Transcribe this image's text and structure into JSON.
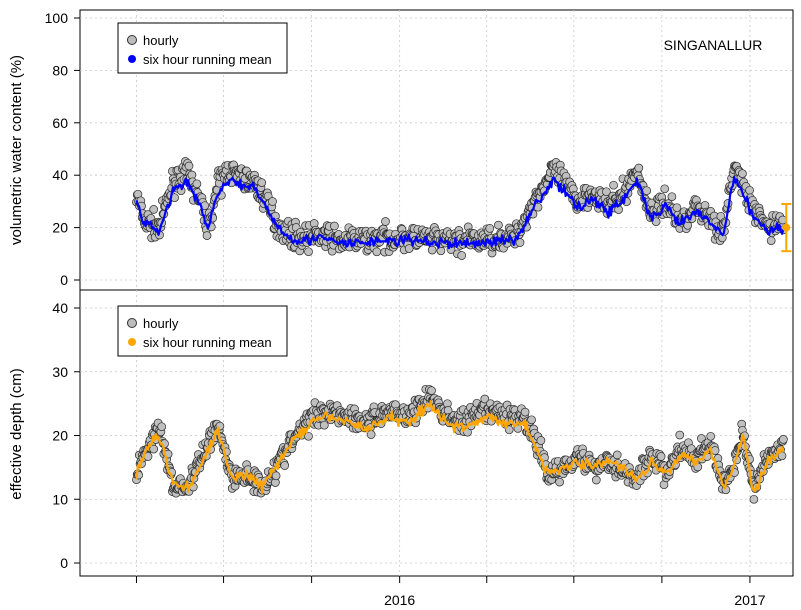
{
  "chart_data": [
    {
      "type": "scatter",
      "title": "",
      "annotation": "SINGANALLUR",
      "xlabel": "",
      "ylabel": "volumetric water content (%)",
      "ylim": [
        0,
        100
      ],
      "yticks": [
        "0",
        "20",
        "40",
        "60",
        "80",
        "100"
      ],
      "xtick_labels": [
        {
          "x": "2016-01-01",
          "label": "2016"
        },
        {
          "x": "2017-01-01",
          "label": "2017"
        }
      ],
      "xlim": [
        "2015-02-01",
        "2017-02-15"
      ],
      "grid": true,
      "legend_position": "top-left",
      "series": [
        {
          "name": "hourly",
          "marker": "grey-circle",
          "x": [
            "2015-04-01",
            "2015-04-10",
            "2015-04-25",
            "2015-05-10",
            "2015-05-25",
            "2015-06-05",
            "2015-06-15",
            "2015-06-25",
            "2015-07-05",
            "2015-07-15",
            "2015-07-25",
            "2015-08-01",
            "2015-08-15",
            "2015-08-25",
            "2015-09-05",
            "2015-09-20",
            "2015-10-10",
            "2015-10-30",
            "2015-11-20",
            "2015-12-10",
            "2016-01-01",
            "2016-01-20",
            "2016-02-10",
            "2016-03-01",
            "2016-03-20",
            "2016-04-10",
            "2016-05-01",
            "2016-05-20",
            "2016-06-10",
            "2016-06-25",
            "2016-07-05",
            "2016-07-20",
            "2016-08-05",
            "2016-08-20",
            "2016-09-05",
            "2016-09-20",
            "2016-10-05",
            "2016-10-20",
            "2016-11-05",
            "2016-11-20",
            "2016-12-05",
            "2016-12-15",
            "2016-12-25",
            "2017-01-05",
            "2017-01-20",
            "2017-02-05"
          ],
          "values": [
            32,
            22,
            20,
            38,
            40,
            32,
            20,
            36,
            42,
            40,
            38,
            38,
            30,
            22,
            18,
            16,
            17,
            15,
            15,
            16,
            16,
            16,
            15,
            15,
            15,
            16,
            16,
            30,
            42,
            35,
            30,
            34,
            28,
            32,
            42,
            25,
            30,
            22,
            28,
            24,
            18,
            44,
            36,
            26,
            20,
            22
          ]
        },
        {
          "name": "six hour running mean",
          "color": "#0000ff",
          "x": [
            "2015-04-01",
            "2015-04-10",
            "2015-04-25",
            "2015-05-10",
            "2015-05-25",
            "2015-06-05",
            "2015-06-15",
            "2015-06-25",
            "2015-07-05",
            "2015-07-15",
            "2015-07-25",
            "2015-08-01",
            "2015-08-15",
            "2015-08-25",
            "2015-09-05",
            "2015-09-20",
            "2015-10-10",
            "2015-10-30",
            "2015-11-20",
            "2015-12-10",
            "2016-01-01",
            "2016-01-20",
            "2016-02-10",
            "2016-03-01",
            "2016-03-20",
            "2016-04-10",
            "2016-05-01",
            "2016-05-20",
            "2016-06-10",
            "2016-06-25",
            "2016-07-05",
            "2016-07-20",
            "2016-08-05",
            "2016-08-20",
            "2016-09-05",
            "2016-09-20",
            "2016-10-05",
            "2016-10-20",
            "2016-11-05",
            "2016-11-20",
            "2016-12-05",
            "2016-12-15",
            "2016-12-25",
            "2017-01-05",
            "2017-01-20",
            "2017-02-05"
          ],
          "values": [
            30,
            21,
            19,
            35,
            37,
            30,
            19,
            34,
            38,
            37,
            35,
            35,
            28,
            21,
            17,
            15,
            16,
            14,
            14,
            15,
            15,
            15,
            14,
            14,
            14,
            15,
            15,
            28,
            38,
            32,
            28,
            31,
            26,
            30,
            38,
            23,
            28,
            21,
            26,
            22,
            17,
            40,
            33,
            24,
            19,
            20
          ]
        }
      ],
      "error_bar": {
        "x": "2017-02-08",
        "y": 20,
        "low": 11,
        "high": 29,
        "color": "#ffa500"
      }
    },
    {
      "type": "scatter",
      "title": "",
      "xlabel": "",
      "ylabel": "effective depth (cm)",
      "ylim": [
        0,
        40
      ],
      "yticks": [
        "0",
        "10",
        "20",
        "30",
        "40"
      ],
      "xtick_labels": [
        {
          "x": "2016-01-01",
          "label": "2016"
        },
        {
          "x": "2017-01-01",
          "label": "2017"
        }
      ],
      "xlim": [
        "2015-02-01",
        "2017-02-15"
      ],
      "grid": true,
      "legend_position": "top-left",
      "series": [
        {
          "name": "hourly",
          "marker": "grey-circle",
          "x": [
            "2015-04-01",
            "2015-04-15",
            "2015-04-25",
            "2015-05-10",
            "2015-05-25",
            "2015-06-10",
            "2015-06-25",
            "2015-07-10",
            "2015-07-25",
            "2015-08-10",
            "2015-08-25",
            "2015-09-10",
            "2015-10-01",
            "2015-10-20",
            "2015-11-10",
            "2015-12-01",
            "2015-12-20",
            "2016-01-10",
            "2016-02-01",
            "2016-02-20",
            "2016-03-10",
            "2016-04-01",
            "2016-04-20",
            "2016-05-10",
            "2016-05-25",
            "2016-06-05",
            "2016-06-20",
            "2016-07-05",
            "2016-07-20",
            "2016-08-05",
            "2016-08-20",
            "2016-09-05",
            "2016-09-20",
            "2016-10-05",
            "2016-10-20",
            "2016-11-05",
            "2016-11-20",
            "2016-12-05",
            "2016-12-15",
            "2016-12-25",
            "2017-01-05",
            "2017-01-20",
            "2017-02-05"
          ],
          "values": [
            14,
            19,
            21,
            12,
            12,
            17,
            22,
            13,
            14,
            12,
            15,
            19,
            23,
            24,
            23,
            22,
            24,
            23,
            26,
            23,
            22,
            24,
            23,
            23,
            18,
            14,
            15,
            17,
            15,
            16,
            15,
            13,
            17,
            14,
            18,
            16,
            19,
            12,
            15,
            21,
            11,
            17,
            18
          ]
        },
        {
          "name": "six hour running mean",
          "color": "#ffa500",
          "x": [
            "2015-04-01",
            "2015-04-15",
            "2015-04-25",
            "2015-05-10",
            "2015-05-25",
            "2015-06-10",
            "2015-06-25",
            "2015-07-10",
            "2015-07-25",
            "2015-08-10",
            "2015-08-25",
            "2015-09-10",
            "2015-10-01",
            "2015-10-20",
            "2015-11-10",
            "2015-12-01",
            "2015-12-20",
            "2016-01-10",
            "2016-02-01",
            "2016-02-20",
            "2016-03-10",
            "2016-04-01",
            "2016-04-20",
            "2016-05-10",
            "2016-05-25",
            "2016-06-05",
            "2016-06-20",
            "2016-07-05",
            "2016-07-20",
            "2016-08-05",
            "2016-08-20",
            "2016-09-05",
            "2016-09-20",
            "2016-10-05",
            "2016-10-20",
            "2016-11-05",
            "2016-11-20",
            "2016-12-05",
            "2016-12-15",
            "2016-12-25",
            "2017-01-05",
            "2017-01-20",
            "2017-02-05"
          ],
          "values": [
            14,
            19,
            20,
            12,
            12,
            16,
            21,
            13,
            14,
            12,
            15,
            19,
            22,
            23,
            22,
            21,
            23,
            22,
            25,
            22,
            21,
            23,
            22,
            22,
            17,
            14,
            15,
            16,
            15,
            16,
            15,
            13,
            16,
            14,
            17,
            16,
            18,
            12,
            15,
            20,
            11,
            16,
            18
          ]
        }
      ]
    }
  ]
}
